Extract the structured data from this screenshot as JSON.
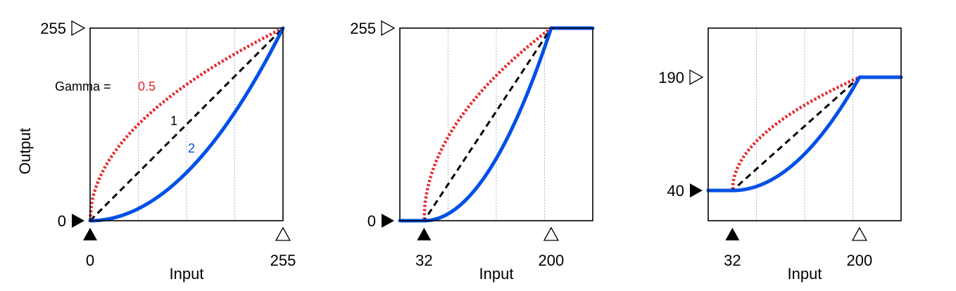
{
  "colors": {
    "gamma_0_5": "#e8262a",
    "gamma_1": "#000000",
    "gamma_2": "#0050e6",
    "grid": "#aab4d6"
  },
  "chart_data": [
    {
      "type": "line",
      "title": "",
      "xlabel": "Input",
      "ylabel": "Output",
      "xlim": [
        0,
        255
      ],
      "ylim": [
        0,
        255
      ],
      "x_ticks": [
        "0",
        "255"
      ],
      "y_ticks": [
        "0",
        "255"
      ],
      "input_black": 0,
      "input_white": 255,
      "output_black": 0,
      "output_white": 255,
      "grid": true,
      "annotation": {
        "prefix": "Gamma =",
        "label_0_5": "0.5",
        "label_1": "1",
        "label_2": "2"
      },
      "series": [
        {
          "gamma": 0.5,
          "style": "dotted"
        },
        {
          "gamma": 1,
          "style": "dashed"
        },
        {
          "gamma": 2,
          "style": "solid"
        }
      ]
    },
    {
      "type": "line",
      "title": "",
      "xlabel": "Input",
      "ylabel": "",
      "xlim": [
        0,
        255
      ],
      "ylim": [
        0,
        255
      ],
      "x_ticks": [
        "32",
        "200"
      ],
      "y_ticks": [
        "0",
        "255"
      ],
      "input_black": 32,
      "input_white": 200,
      "output_black": 0,
      "output_white": 255,
      "grid": true,
      "series": [
        {
          "gamma": 0.5,
          "style": "dotted"
        },
        {
          "gamma": 1,
          "style": "dashed"
        },
        {
          "gamma": 2,
          "style": "solid"
        }
      ]
    },
    {
      "type": "line",
      "title": "",
      "xlabel": "Input",
      "ylabel": "",
      "xlim": [
        0,
        255
      ],
      "ylim": [
        0,
        255
      ],
      "x_ticks": [
        "32",
        "200"
      ],
      "y_ticks": [
        "40",
        "190"
      ],
      "input_black": 32,
      "input_white": 200,
      "output_black": 40,
      "output_white": 190,
      "grid": true,
      "series": [
        {
          "gamma": 0.5,
          "style": "dotted"
        },
        {
          "gamma": 1,
          "style": "dashed"
        },
        {
          "gamma": 2,
          "style": "solid"
        }
      ]
    }
  ]
}
